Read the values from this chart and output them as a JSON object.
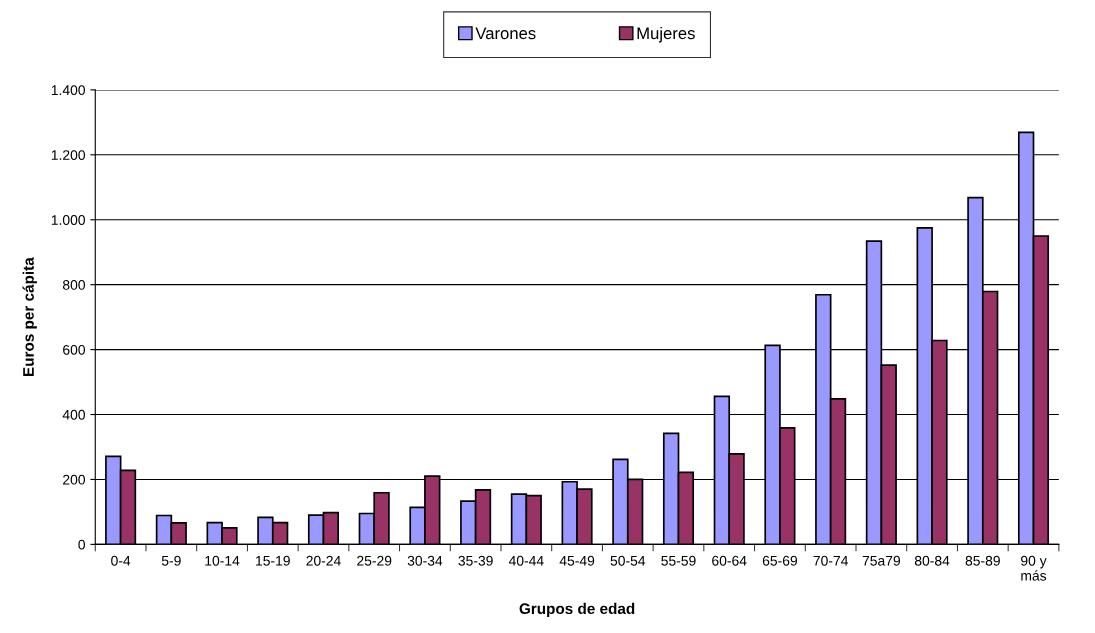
{
  "chart_data": {
    "type": "bar",
    "xlabel": "Grupos de edad",
    "ylabel": "Euros per cápita",
    "categories": [
      "0-4",
      "5-9",
      "10-14",
      "15-19",
      "20-24",
      "25-29",
      "30-34",
      "35-39",
      "40-44",
      "45-49",
      "50-54",
      "55-59",
      "60-64",
      "65-69",
      "70-74",
      "75a79",
      "80-84",
      "85-89",
      "90 y\nmás"
    ],
    "series": [
      {
        "name": "Varones",
        "color": "#9999ff",
        "values": [
          271,
          89,
          67,
          83,
          90,
          95,
          114,
          133,
          155,
          193,
          262,
          342,
          456,
          613,
          769,
          934,
          975,
          1068,
          1269
        ]
      },
      {
        "name": "Mujeres",
        "color": "#993366",
        "values": [
          228,
          66,
          51,
          67,
          98,
          159,
          210,
          168,
          150,
          170,
          200,
          222,
          279,
          359,
          448,
          552,
          628,
          779,
          950
        ]
      }
    ],
    "ylim": [
      0,
      1400
    ],
    "yticks": [
      {
        "value": 0,
        "label": "0"
      },
      {
        "value": 200,
        "label": "200"
      },
      {
        "value": 400,
        "label": "400"
      },
      {
        "value": 600,
        "label": "600"
      },
      {
        "value": 800,
        "label": "800"
      },
      {
        "value": 1000,
        "label": "1.000"
      },
      {
        "value": 1200,
        "label": "1.200"
      },
      {
        "value": 1400,
        "label": "1.400"
      }
    ],
    "grid": "y",
    "legend": "top"
  }
}
